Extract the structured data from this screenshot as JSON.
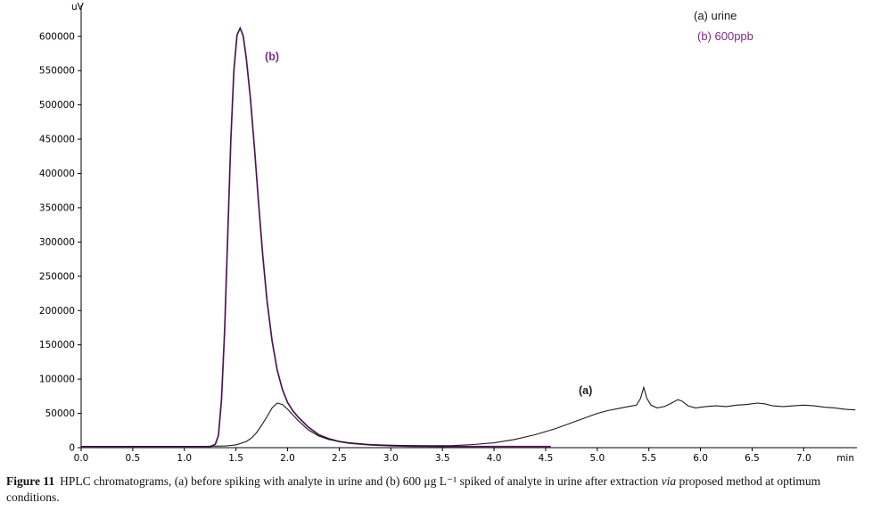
{
  "figure": {
    "caption": {
      "label": "Figure 11",
      "text_before_via": "HPLC chromatograms, (a) before spiking with analyte in urine and (b) 600 μg L⁻¹ spiked of analyte in urine after extraction ",
      "via_word": "via",
      "text_after_via": " proposed method at optimum conditions."
    }
  },
  "chart_data": {
    "type": "line",
    "title": "",
    "xlabel": "min",
    "ylabel": "uV",
    "xlim": [
      0,
      7.55
    ],
    "ylim": [
      0,
      640000
    ],
    "grid": false,
    "legend_position": "top-right",
    "x_ticks": [
      0,
      0.5,
      1,
      1.5,
      2,
      2.5,
      3,
      3.5,
      4,
      4.5,
      5,
      5.5,
      6,
      6.5,
      7
    ],
    "y_ticks": [
      0,
      50000,
      100000,
      150000,
      200000,
      250000,
      300000,
      350000,
      400000,
      450000,
      500000,
      550000,
      600000
    ],
    "series": [
      {
        "name": "(a) urine",
        "color": "#1a1a1a",
        "x": [
          0.0,
          0.3,
          0.6,
          0.9,
          1.2,
          1.4,
          1.5,
          1.6,
          1.65,
          1.7,
          1.75,
          1.8,
          1.85,
          1.9,
          1.95,
          2.0,
          2.05,
          2.1,
          2.2,
          2.3,
          2.4,
          2.5,
          2.6,
          2.8,
          3.0,
          3.2,
          3.4,
          3.6,
          3.8,
          4.0,
          4.2,
          4.4,
          4.6,
          4.8,
          5.0,
          5.1,
          5.2,
          5.3,
          5.38,
          5.42,
          5.45,
          5.48,
          5.52,
          5.58,
          5.65,
          5.72,
          5.78,
          5.82,
          5.88,
          5.95,
          6.05,
          6.15,
          6.25,
          6.35,
          6.45,
          6.55,
          6.62,
          6.7,
          6.8,
          6.9,
          7.0,
          7.1,
          7.2,
          7.3,
          7.4,
          7.5
        ],
        "y": [
          2000,
          2000,
          2000,
          2000,
          2000,
          2500,
          4000,
          9000,
          14000,
          22000,
          33000,
          45000,
          58000,
          65000,
          63000,
          56000,
          48000,
          40000,
          26000,
          17000,
          12000,
          9000,
          7000,
          4500,
          3500,
          3000,
          2800,
          3000,
          4500,
          7000,
          12000,
          19000,
          28000,
          39000,
          50000,
          54000,
          57000,
          60000,
          62000,
          72000,
          88000,
          72000,
          62000,
          58000,
          60000,
          65000,
          70000,
          68000,
          61000,
          58000,
          60000,
          61000,
          60000,
          62000,
          63000,
          65000,
          64000,
          61000,
          60000,
          61000,
          62000,
          61000,
          59000,
          58000,
          56000,
          55000
        ]
      },
      {
        "name": "(b) 600ppb",
        "color": "#7b2b86",
        "overlay": "#1a1a1a",
        "x": [
          0.0,
          0.3,
          0.6,
          0.9,
          1.1,
          1.2,
          1.25,
          1.3,
          1.33,
          1.36,
          1.39,
          1.42,
          1.45,
          1.48,
          1.51,
          1.54,
          1.57,
          1.6,
          1.64,
          1.68,
          1.72,
          1.76,
          1.8,
          1.85,
          1.9,
          1.95,
          2.0,
          2.05,
          2.1,
          2.2,
          2.3,
          2.4,
          2.5,
          2.6,
          2.8,
          3.0,
          3.2,
          3.5,
          3.8,
          4.1,
          4.3,
          4.55
        ],
        "y": [
          1000,
          1200,
          1000,
          1000,
          1000,
          1200,
          1500,
          5000,
          18000,
          70000,
          170000,
          310000,
          450000,
          550000,
          602000,
          612000,
          601000,
          568000,
          510000,
          435000,
          355000,
          280000,
          215000,
          155000,
          113000,
          85000,
          66000,
          54000,
          45000,
          30000,
          19000,
          13000,
          9000,
          6500,
          4000,
          2800,
          2200,
          1800,
          1500,
          1500,
          1500,
          1500
        ]
      }
    ],
    "annotations": [
      {
        "text": "(b)",
        "x": 1.78,
        "y": 565000,
        "color": "#7b2b86"
      },
      {
        "text": "(a)",
        "x": 4.82,
        "y": 78000,
        "color": "#1a1a1a"
      }
    ]
  }
}
